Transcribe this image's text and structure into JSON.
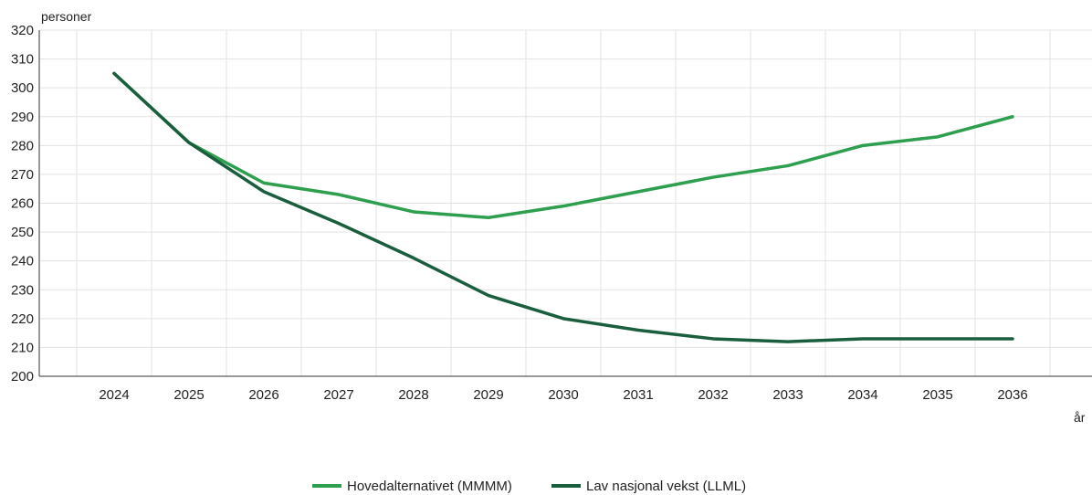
{
  "chart_data": {
    "type": "line",
    "title": "",
    "ylabel": "personer",
    "xlabel": "år",
    "ylim": [
      200,
      320
    ],
    "yticks": [
      200,
      210,
      220,
      230,
      240,
      250,
      260,
      270,
      280,
      290,
      300,
      310,
      320
    ],
    "categories": [
      "2024",
      "2025",
      "2026",
      "2027",
      "2028",
      "2029",
      "2030",
      "2031",
      "2032",
      "2033",
      "2034",
      "2035",
      "2036"
    ],
    "grid": true,
    "legend_position": "bottom-center",
    "series": [
      {
        "name": "Hovedalternativet (MMMM)",
        "color": "#2e9e4f",
        "values": [
          305,
          281,
          267,
          263,
          257,
          255,
          259,
          264,
          269,
          273,
          280,
          283,
          290
        ]
      },
      {
        "name": "Lav nasjonal vekst (LLML)",
        "color": "#1a5e3e",
        "values": [
          305,
          281,
          264,
          253,
          241,
          228,
          220,
          216,
          213,
          212,
          213,
          213,
          213
        ]
      }
    ]
  }
}
